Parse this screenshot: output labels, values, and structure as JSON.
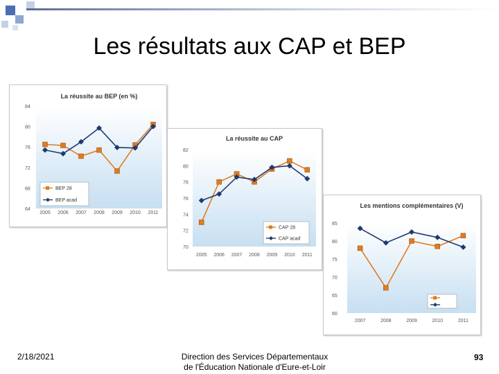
{
  "slide": {
    "title": "Les résultats aux CAP et BEP",
    "footer_date": "2/18/2021",
    "footer_line1": "Direction des Services Départementaux",
    "footer_line2": "de l'Éducation Nationale d'Eure-et-Loir",
    "page_number": "93"
  },
  "colors": {
    "series_orange": "#e07b1f",
    "series_navy": "#1f3a6e",
    "plot_bg_top": "#ffffff",
    "plot_bg_bottom": "#c6dff2",
    "accent_squares": "#4a6eb0"
  },
  "chart_data": [
    {
      "type": "line",
      "title": "La réussite au BEP (en %)",
      "categories": [
        "2005",
        "2006",
        "2007",
        "2008",
        "2009",
        "2010",
        "2011"
      ],
      "ylim": [
        64,
        84
      ],
      "yticks": [
        "84",
        "80",
        "76",
        "72",
        "68",
        "64"
      ],
      "legend": "bottom-left",
      "grid": false,
      "series": [
        {
          "name": "BEP 28",
          "values": [
            76.5,
            76.3,
            74.2,
            75.4,
            71.3,
            76.4,
            80.4
          ]
        },
        {
          "name": "BEP acad",
          "values": [
            75.4,
            74.7,
            77.0,
            79.7,
            75.9,
            75.8,
            80.0
          ]
        }
      ]
    },
    {
      "type": "line",
      "title": "La réussite au CAP",
      "categories": [
        "2005",
        "2006",
        "2007",
        "2008",
        "2009",
        "2010",
        "2011"
      ],
      "ylim": [
        70,
        82
      ],
      "yticks": [
        "82",
        "80",
        "78",
        "76",
        "74",
        "72",
        "70"
      ],
      "legend": "bottom-right",
      "grid": false,
      "series": [
        {
          "name": "CAP 28",
          "values": [
            73.0,
            78.0,
            79.0,
            78.0,
            79.6,
            80.6,
            79.5
          ]
        },
        {
          "name": "CAP acad",
          "values": [
            75.7,
            76.5,
            78.6,
            78.3,
            79.8,
            80.0,
            78.4
          ]
        }
      ]
    },
    {
      "type": "line",
      "title": "Les mentions complémentaires (V)",
      "categories": [
        "2007",
        "2008",
        "2009",
        "2010",
        "2011"
      ],
      "ylim": [
        60,
        85
      ],
      "yticks": [
        "85",
        "80",
        "75",
        "70",
        "65",
        "60"
      ],
      "legend": "bottom-right",
      "grid": false,
      "series": [
        {
          "values": [
            78.0,
            67.0,
            80.0,
            78.5,
            81.5
          ]
        },
        {
          "values": [
            83.5,
            79.5,
            82.5,
            81.0,
            78.3
          ]
        }
      ]
    }
  ]
}
